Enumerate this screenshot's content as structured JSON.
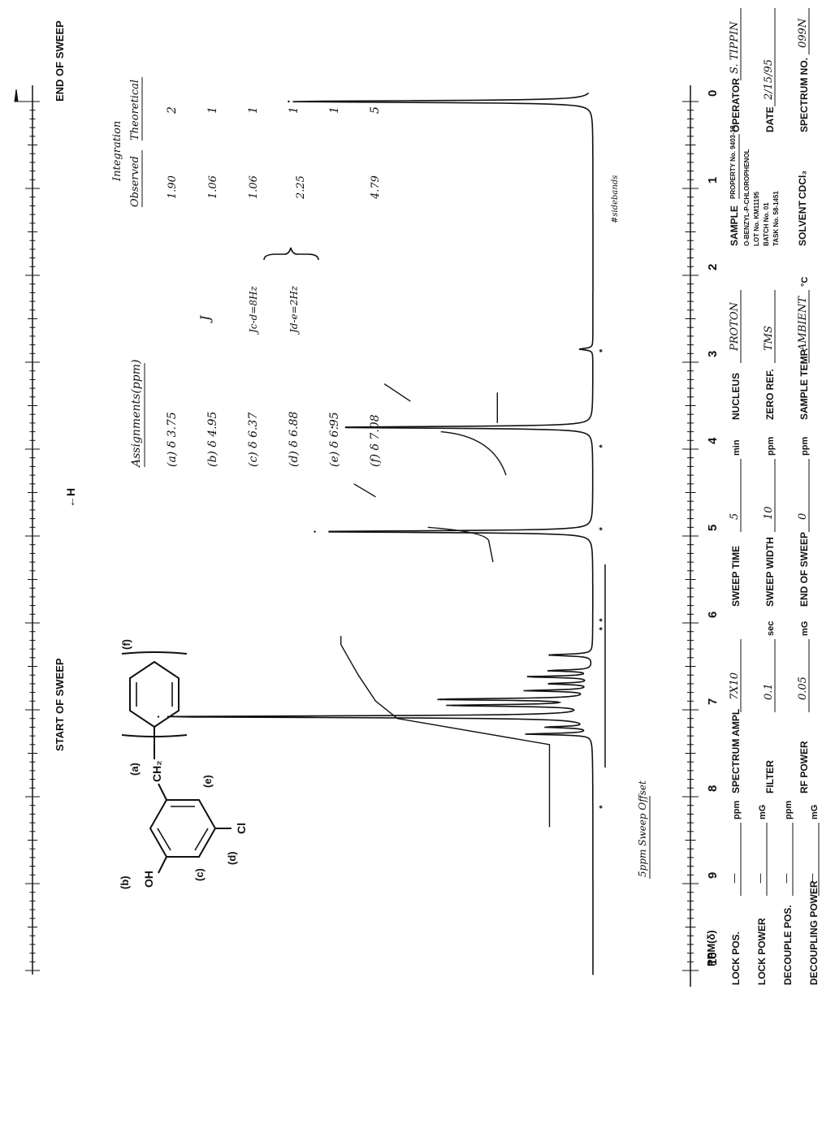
{
  "chart_data": {
    "type": "line",
    "title": "",
    "xlabel": "PPM(δ)",
    "ylabel": "",
    "xlim": [
      10,
      0
    ],
    "x_ticks": [
      "10",
      "9",
      "8",
      "7",
      "6",
      "5",
      "4",
      "3",
      "2",
      "1",
      "0"
    ],
    "sweep": {
      "start_label": "START OF SWEEP",
      "end_label": "END OF SWEEP",
      "h_label": "←H",
      "offset_note": "5ppm Sweep Offset",
      "solvent_note": "#sidebands"
    },
    "peaks": [
      {
        "ppm": 0.0,
        "height": 0.7,
        "label": "TMS"
      },
      {
        "ppm": 2.85,
        "height": 0.03,
        "label": "ss"
      },
      {
        "ppm": 3.75,
        "height": 0.6,
        "label": "a"
      },
      {
        "ppm": 4.95,
        "height": 0.64,
        "label": "b"
      },
      {
        "ppm": 6.37,
        "height": 0.1,
        "label": "c"
      },
      {
        "ppm": 6.88,
        "height": 0.35,
        "label": "d"
      },
      {
        "ppm": 6.95,
        "height": 0.32,
        "label": "e"
      },
      {
        "ppm": 7.08,
        "height": 1.0,
        "label": "f"
      }
    ],
    "integral_steps": [
      {
        "from": 8.35,
        "to": 6.2,
        "level": 0.1
      },
      {
        "from": 6.2,
        "to": 5.3,
        "level": 0.58
      },
      {
        "from": 5.3,
        "to": 3.3,
        "level": 0.23
      }
    ]
  },
  "structure": {
    "labels": [
      "(b)",
      "OH",
      "CH₂",
      "(a)",
      "(c)",
      "(e)",
      "(d)",
      "Cl",
      "(f)"
    ]
  },
  "assignments": {
    "header_assign": "Assignments(ppm)",
    "header_j": "J",
    "header_integration": "Integration",
    "header_observed": "Observed",
    "header_theoretical": "Theoretical",
    "rows": [
      {
        "assign": "(a) δ 3.75",
        "j": "",
        "observed": "1.90",
        "theoretical": "2"
      },
      {
        "assign": "(b) δ 4.95",
        "j": "",
        "observed": "1.06",
        "theoretical": "1"
      },
      {
        "assign": "(c) δ 6.37",
        "j": "Jc-d=8Hz",
        "observed": "1.06",
        "theoretical": "1"
      },
      {
        "assign": "(d) δ 6.88",
        "j": "Jd-e=2Hz",
        "observed": "2.25",
        "theoretical": "1"
      },
      {
        "assign": "(e) δ 6.95",
        "j": "",
        "observed": "",
        "theoretical": "1"
      },
      {
        "assign": "(f) δ 7.08",
        "j": "",
        "observed": "4.79",
        "theoretical": "5"
      }
    ]
  },
  "form": {
    "col1": [
      {
        "label": "LOCK POS.",
        "value": "—",
        "unit": "ppm"
      },
      {
        "label": "LOCK POWER",
        "value": "—",
        "unit": "mG"
      },
      {
        "label": "DECOUPLE POS.",
        "value": "—",
        "unit": "ppm"
      },
      {
        "label": "DECOUPLING POWER",
        "value": "—",
        "unit": "mG"
      }
    ],
    "col2": [
      {
        "label": "SPECTRUM AMPL",
        "value": "7X10",
        "unit": ""
      },
      {
        "label": "FILTER",
        "value": "0.1",
        "unit": "sec"
      },
      {
        "label": "RF POWER",
        "value": "0.05",
        "unit": "mG"
      }
    ],
    "col3": [
      {
        "label": "SWEEP TIME",
        "value": "5",
        "unit": "min"
      },
      {
        "label": "SWEEP WIDTH",
        "value": "10",
        "unit": "ppm"
      },
      {
        "label": "END OF SWEEP",
        "value": "0",
        "unit": "ppm"
      }
    ],
    "col4": [
      {
        "label": "NUCLEUS",
        "value": "PROTON",
        "unit": ""
      },
      {
        "label": "ZERO REF.",
        "value": "TMS",
        "unit": ""
      },
      {
        "label": "SAMPLE TEMP.",
        "value": "AMBIENT",
        "unit": "°C"
      }
    ],
    "col5": {
      "sample_label": "SAMPLE",
      "sample_lines": [
        "PROPERTY No. 9403-18",
        "O-BENZYL-P-CHLOROPHENOL",
        "LOT No. KM11195",
        "BATCH No. 01",
        "TASK No. 58-1451"
      ],
      "solvent_label": "SOLVENT",
      "solvent_value": "CDCl₃"
    },
    "col6": [
      {
        "label": "OPERATOR",
        "value": "S. TIPPIN"
      },
      {
        "label": "DATE",
        "value": "2/15/95"
      },
      {
        "label": "SPECTRUM NO.",
        "value": "099N"
      }
    ]
  }
}
